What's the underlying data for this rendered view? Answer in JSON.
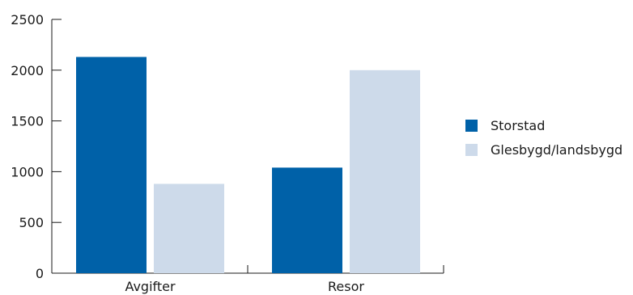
{
  "chart_data": {
    "type": "bar",
    "title": "",
    "xlabel": "",
    "ylabel": "",
    "categories": [
      "Avgifter",
      "Resor"
    ],
    "series": [
      {
        "name": "Storstad",
        "color": "#0061a8",
        "values": [
          2130,
          1040
        ]
      },
      {
        "name": "Glesbygd/landsbygd",
        "color": "#cddaea",
        "values": [
          880,
          2000
        ]
      }
    ],
    "ylim": [
      0,
      2500
    ],
    "yticks": [
      0,
      500,
      1000,
      1500,
      2000,
      2500
    ],
    "yticks_labels": [
      "0",
      "500",
      "1000",
      "1500",
      "2000",
      "2500"
    ],
    "grid": false,
    "legend_position": "right"
  }
}
